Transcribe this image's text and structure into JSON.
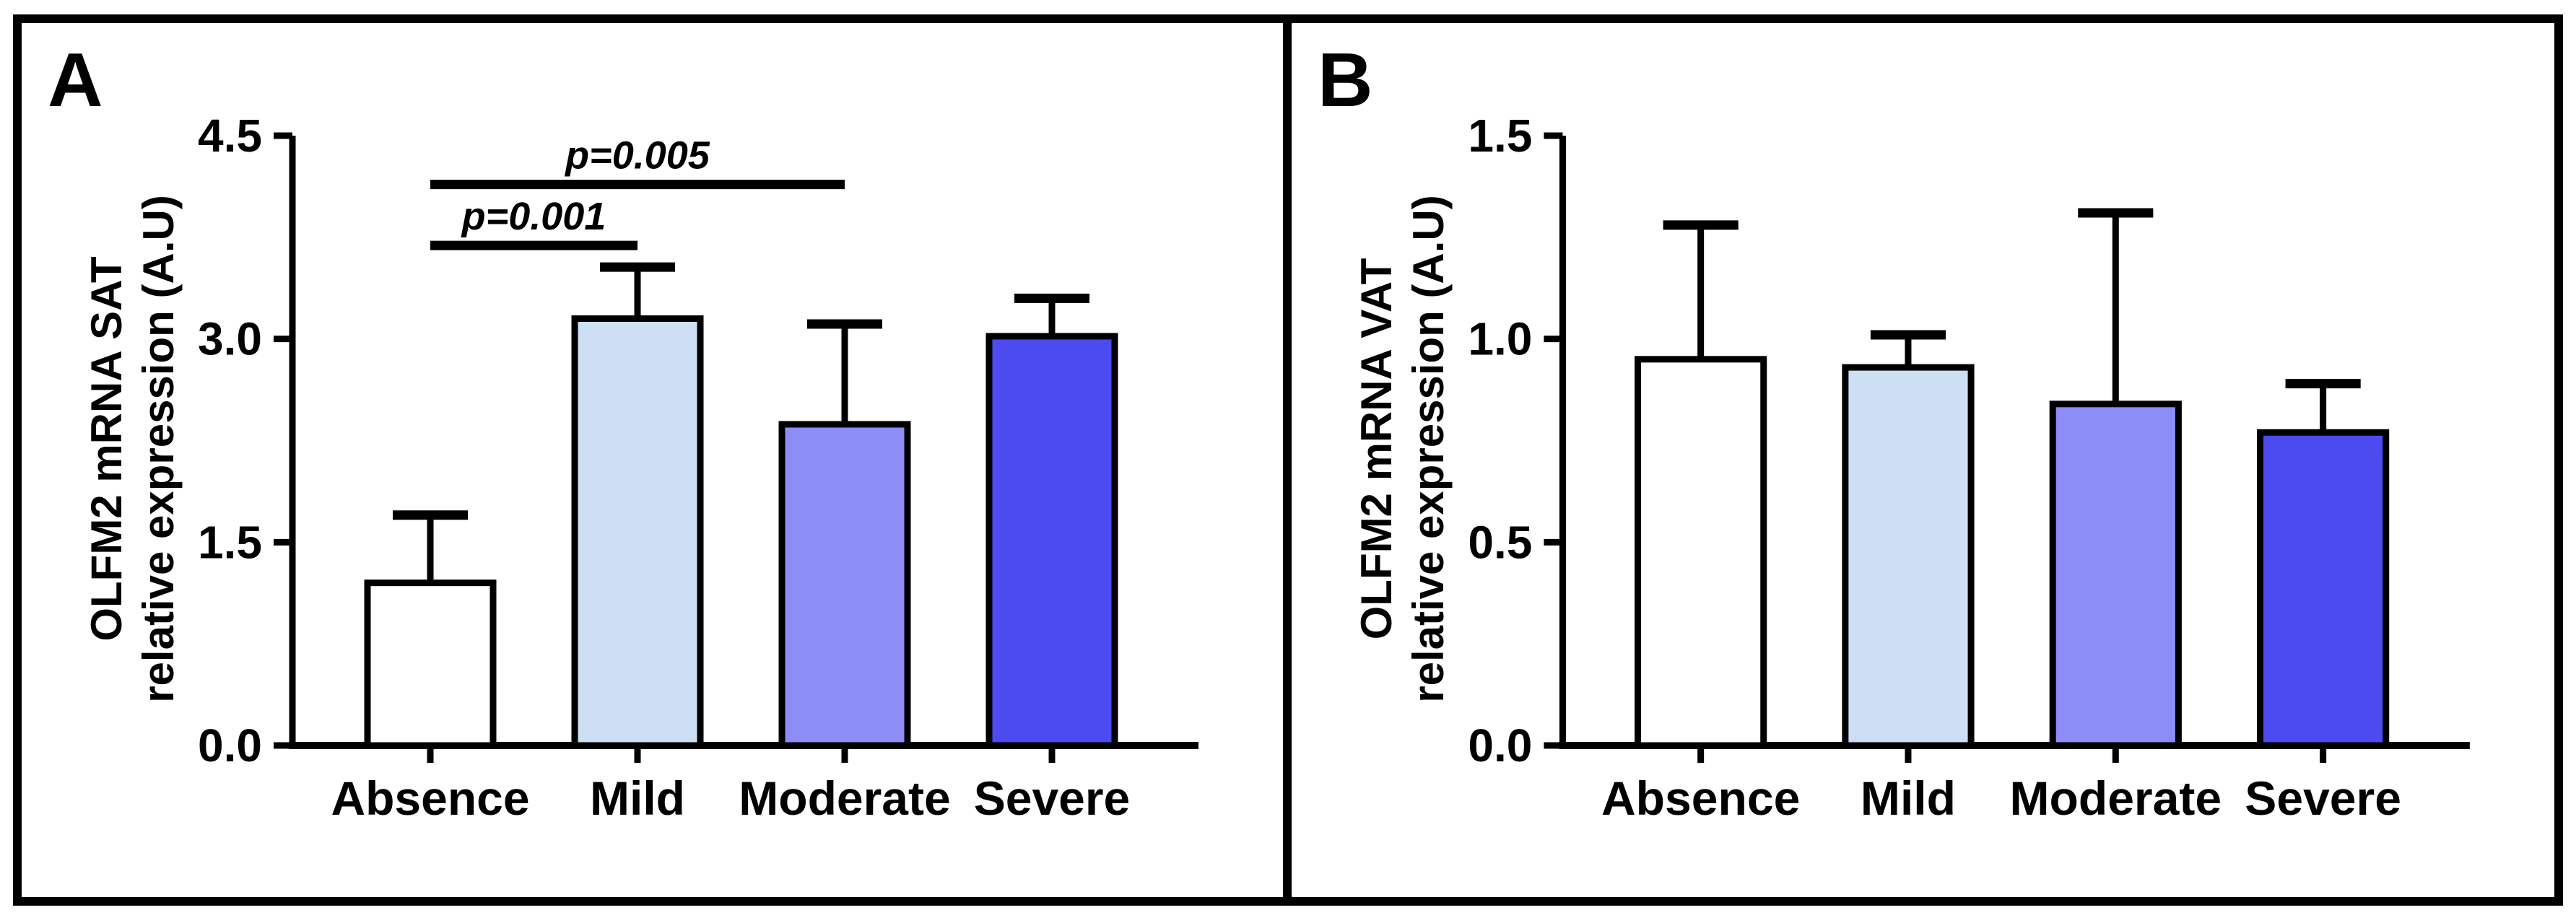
{
  "panels": [
    {
      "label": "A"
    },
    {
      "label": "B"
    }
  ],
  "chart_data": [
    {
      "type": "bar",
      "panel": "A",
      "title": "",
      "xlabel": "",
      "ylabel": "OLFM2 mRNA SAT relative expression (A.U)",
      "ylabel_lines": [
        "OLFM2 mRNA SAT",
        "relative expression (A.U)"
      ],
      "categories": [
        "Absence",
        "Mild",
        "Moderate",
        "Severe"
      ],
      "values": [
        1.2,
        3.15,
        2.37,
        3.02
      ],
      "errors_plus": [
        0.5,
        0.38,
        0.74,
        0.28
      ],
      "bar_colors": [
        "#FFFFFF",
        "#CCDFF5",
        "#8D8DF8",
        "#4B4BF0"
      ],
      "bar_outline": "#000000",
      "ylim": [
        0,
        4.5
      ],
      "yticks": [
        0,
        1.5,
        3,
        4.5
      ],
      "ytick_labels": [
        "0.0",
        "1.5",
        "3.0",
        "4.5"
      ],
      "grid": false,
      "legend": "none",
      "significance": [
        {
          "from": "Absence",
          "to": "Mild",
          "label": "p=0.001",
          "y": 3.69
        },
        {
          "from": "Absence",
          "to": "Moderate",
          "label": "p=0.005",
          "y": 4.14
        }
      ]
    },
    {
      "type": "bar",
      "panel": "B",
      "title": "",
      "xlabel": "",
      "ylabel": "OLFM2 mRNA VAT relative expression (A.U)",
      "ylabel_lines": [
        "OLFM2 mRNA VAT",
        "relative expression (A.U)"
      ],
      "categories": [
        "Absence",
        "Mild",
        "Moderate",
        "Severe"
      ],
      "values": [
        0.95,
        0.93,
        0.84,
        0.77
      ],
      "errors_plus": [
        0.33,
        0.08,
        0.47,
        0.12
      ],
      "bar_colors": [
        "#FFFFFF",
        "#CCDFF5",
        "#8D8DF8",
        "#4B4BF0"
      ],
      "bar_outline": "#000000",
      "ylim": [
        0,
        1.5
      ],
      "yticks": [
        0,
        0.5,
        1,
        1.5
      ],
      "ytick_labels": [
        "0.0",
        "0.5",
        "1.0",
        "1.5"
      ],
      "grid": false,
      "legend": "none",
      "significance": []
    }
  ]
}
